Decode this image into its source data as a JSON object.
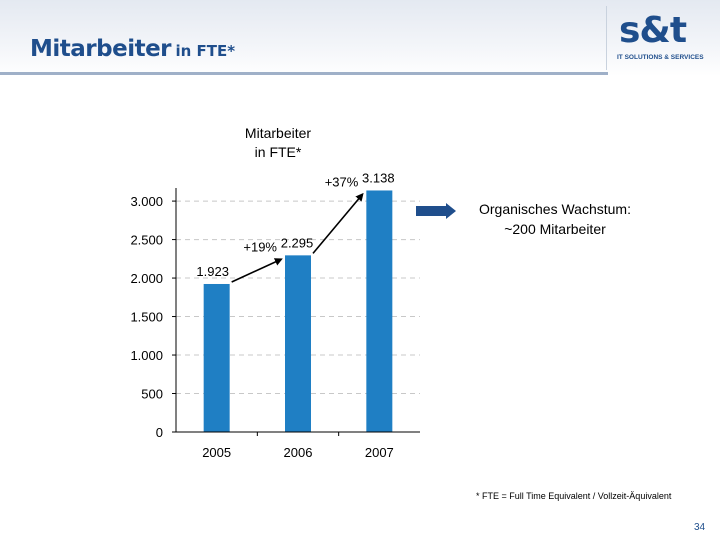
{
  "header": {
    "title_main": "Mitarbeiter",
    "title_sub": "in FTE*",
    "logo_text": "s&t",
    "logo_tagline": "IT SOLUTIONS & SERVICES"
  },
  "chart_data": {
    "type": "bar",
    "title_lines": [
      "Mitarbeiter",
      "in FTE*"
    ],
    "categories": [
      "2005",
      "2006",
      "2007"
    ],
    "values": [
      1923,
      2295,
      3138
    ],
    "value_labels": [
      "1.923",
      "2.295",
      "3.138"
    ],
    "ylim": [
      0,
      3300
    ],
    "yticks": [
      0,
      500,
      1000,
      1500,
      2000,
      2500,
      3000
    ],
    "ytick_labels": [
      "0",
      "500",
      "1.000",
      "1.500",
      "2.000",
      "2.500",
      "3.000"
    ],
    "grid": true,
    "bar_color": "#1f7fc4",
    "annotations": [
      {
        "label": "+19%",
        "from": "2005",
        "to": "2006"
      },
      {
        "label": "+37%",
        "from": "2006",
        "to": "2007"
      }
    ]
  },
  "callout": {
    "lines": [
      "Organisches Wachstum:",
      "~200 Mitarbeiter"
    ],
    "arrow_color": "#1f4e8c"
  },
  "footnote": "* FTE = Full Time Equivalent / Vollzeit-Äquivalent",
  "page_number": "34",
  "colors": {
    "title": "#1f4e8c",
    "bar": "#1f7fc4",
    "grid": "#c8c8c8"
  }
}
